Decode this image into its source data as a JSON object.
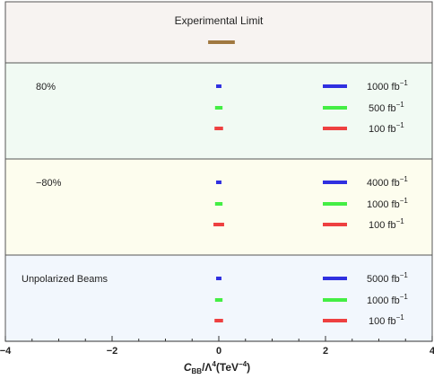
{
  "chart_data": {
    "type": "interval",
    "title": "",
    "xlabel": "C",
    "xlabel_sub": "BB",
    "xlabel_rest": "/Λ",
    "xlabel_sup": "4",
    "xlabel_unit": "(TeV",
    "xlabel_unit_sup": "−4",
    "xlabel_unit_close": ")",
    "xlim": [
      -4,
      4
    ],
    "xticks": [
      -4,
      -2,
      0,
      2,
      4
    ],
    "xtick_labels": [
      "−4",
      "−2",
      "0",
      "2",
      "4"
    ],
    "grid": false,
    "experimental_limit": {
      "label": "Experimental Limit",
      "low": -0.2,
      "high": 0.3,
      "color": "#A07840"
    },
    "panels": [
      {
        "label": "80%",
        "background": "#F1FAF3",
        "series": [
          {
            "name": "1000 fb⁻¹",
            "lum": "1000",
            "unit": " fb",
            "sup": "−1",
            "low": -0.05,
            "high": 0.05,
            "color": "#3030E0"
          },
          {
            "name": "500 fb⁻¹",
            "lum": "500",
            "unit": " fb",
            "sup": "−1",
            "low": -0.07,
            "high": 0.07,
            "color": "#44EE44"
          },
          {
            "name": "100 fb⁻¹",
            "lum": "100",
            "unit": " fb",
            "sup": "−1",
            "low": -0.08,
            "high": 0.08,
            "color": "#EE4040"
          }
        ]
      },
      {
        "label": "−80%",
        "background": "#FDFDEE",
        "series": [
          {
            "name": "4000 fb⁻¹",
            "lum": "4000",
            "unit": " fb",
            "sup": "−1",
            "low": -0.05,
            "high": 0.05,
            "color": "#3030E0"
          },
          {
            "name": "1000 fb⁻¹",
            "lum": "1000",
            "unit": " fb",
            "sup": "−1",
            "low": -0.07,
            "high": 0.07,
            "color": "#44EE44"
          },
          {
            "name": "100 fb⁻¹",
            "lum": "100",
            "unit": " fb",
            "sup": "−1",
            "low": -0.1,
            "high": 0.1,
            "color": "#EE4040"
          }
        ]
      },
      {
        "label": "Unpolarized Beams",
        "background": "#F2F7FD",
        "series": [
          {
            "name": "5000 fb⁻¹",
            "lum": "5000",
            "unit": " fb",
            "sup": "−1",
            "low": -0.05,
            "high": 0.05,
            "color": "#3030E0"
          },
          {
            "name": "1000 fb⁻¹",
            "lum": "1000",
            "unit": " fb",
            "sup": "−1",
            "low": -0.07,
            "high": 0.07,
            "color": "#44EE44"
          },
          {
            "name": "100 fb⁻¹",
            "lum": "100",
            "unit": " fb",
            "sup": "−1",
            "low": -0.08,
            "high": 0.08,
            "color": "#EE4040"
          }
        ]
      }
    ]
  }
}
